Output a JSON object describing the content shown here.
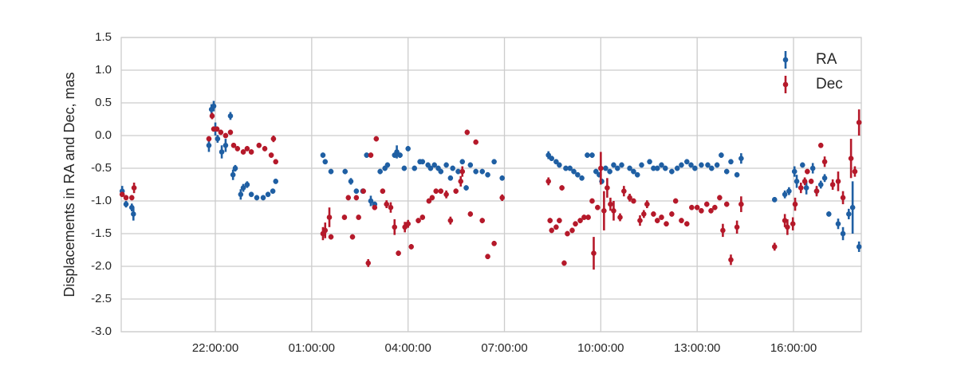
{
  "chart_data": {
    "type": "errorbar-scatter",
    "y_label": "Displacements in RA and Dec, mas",
    "xlim": [
      19.07,
      42.11
    ],
    "ylim": [
      -3.0,
      1.5
    ],
    "xticks": [
      {
        "value": 22,
        "label": "22:00:00"
      },
      {
        "value": 25,
        "label": "01:00:00"
      },
      {
        "value": 28,
        "label": "04:00:00"
      },
      {
        "value": 31,
        "label": "07:00:00"
      },
      {
        "value": 34,
        "label": "10:00:00"
      },
      {
        "value": 37,
        "label": "13:00:00"
      },
      {
        "value": 40,
        "label": "16:00:00"
      }
    ],
    "yticks": [
      1.5,
      {
        "value": 1,
        "label": "1.0"
      },
      0.5,
      {
        "value": 0,
        "label": "0.0"
      },
      -0.5,
      {
        "value": -1,
        "label": "-1.0"
      },
      -1.5,
      {
        "value": -2,
        "label": "-2.0"
      },
      -2.5,
      {
        "value": -3,
        "label": "-3.0"
      }
    ],
    "grid": true,
    "legend": "upper right",
    "series": [
      {
        "name": "RA",
        "color": "#1f5fa3",
        "x": [
          19.1,
          19.22,
          19.4,
          19.45,
          21.8,
          21.88,
          21.95,
          22.0,
          22.07,
          22.2,
          22.32,
          22.47,
          22.55,
          22.62,
          22.79,
          22.87,
          22.99,
          23.12,
          23.29,
          23.49,
          23.64,
          23.79,
          23.88,
          25.35,
          25.42,
          25.6,
          26.04,
          26.22,
          26.39,
          26.59,
          26.71,
          26.84,
          26.96,
          27.13,
          27.28,
          27.36,
          27.58,
          27.65,
          27.75,
          27.88,
          28.0,
          28.2,
          28.37,
          28.45,
          28.62,
          28.7,
          28.82,
          28.94,
          29.02,
          29.19,
          29.32,
          29.39,
          29.56,
          29.69,
          29.81,
          29.94,
          30.11,
          30.31,
          30.48,
          30.68,
          30.93,
          32.37,
          32.47,
          32.61,
          32.71,
          32.91,
          33.04,
          33.16,
          33.28,
          33.41,
          33.58,
          33.73,
          33.85,
          33.95,
          34.03,
          34.15,
          34.28,
          34.4,
          34.52,
          34.65,
          34.9,
          35.02,
          35.14,
          35.27,
          35.52,
          35.64,
          35.76,
          35.89,
          36.01,
          36.21,
          36.38,
          36.51,
          36.68,
          36.81,
          36.93,
          37.13,
          37.33,
          37.45,
          37.62,
          37.75,
          37.92,
          38.05,
          38.24,
          38.37,
          39.41,
          39.73,
          39.86,
          40.03,
          40.1,
          40.28,
          40.4,
          40.6,
          40.72,
          40.85,
          40.97,
          41.1,
          41.39,
          41.54,
          41.72,
          41.84,
          42.04
        ],
        "values": [
          -0.85,
          -1.05,
          -1.1,
          -1.2,
          -0.15,
          0.4,
          0.45,
          0.1,
          -0.05,
          -0.25,
          -0.15,
          0.3,
          -0.6,
          -0.5,
          -0.9,
          -0.8,
          -0.75,
          -0.9,
          -0.95,
          -0.95,
          -0.9,
          -0.85,
          -0.7,
          -0.3,
          -0.4,
          -0.55,
          -0.55,
          -0.7,
          -0.85,
          -0.85,
          -0.3,
          -1.0,
          -1.05,
          -0.55,
          -0.5,
          -0.45,
          -0.3,
          -0.25,
          -0.3,
          -0.5,
          -0.2,
          -0.5,
          -0.4,
          -0.4,
          -0.45,
          -0.5,
          -0.45,
          -0.5,
          -0.55,
          -0.45,
          -0.65,
          -0.5,
          -0.55,
          -0.4,
          -0.8,
          -0.45,
          -0.55,
          -0.55,
          -0.6,
          -0.4,
          -0.65,
          -0.3,
          -0.35,
          -0.4,
          -0.45,
          -0.5,
          -0.5,
          -0.55,
          -0.6,
          -0.65,
          -0.3,
          -0.3,
          -0.55,
          -0.6,
          -0.7,
          -0.5,
          -0.55,
          -0.45,
          -0.5,
          -0.45,
          -0.5,
          -0.55,
          -0.6,
          -0.45,
          -0.4,
          -0.5,
          -0.5,
          -0.45,
          -0.5,
          -0.55,
          -0.5,
          -0.45,
          -0.4,
          -0.45,
          -0.5,
          -0.45,
          -0.45,
          -0.5,
          -0.45,
          -0.3,
          -0.55,
          -0.4,
          -0.6,
          -0.35,
          -0.98,
          -0.9,
          -0.85,
          -0.55,
          -0.7,
          -0.45,
          -0.8,
          -0.5,
          -0.85,
          -0.75,
          -0.65,
          -1.2,
          -1.35,
          -1.5,
          -1.2,
          -1.1,
          -1.7
        ],
        "errors": [
          0.08,
          0.05,
          0.06,
          0.1,
          0.1,
          0.08,
          0.08,
          0.1,
          0.06,
          0.1,
          0.1,
          0.06,
          0.08,
          0.05,
          0.08,
          0.06,
          0.05,
          0.04,
          0.04,
          0.04,
          0.04,
          0.04,
          0.04,
          0.04,
          0.04,
          0.04,
          0.04,
          0.05,
          0.04,
          0.04,
          0.04,
          0.08,
          0.04,
          0.04,
          0.04,
          0.04,
          0.04,
          0.1,
          0.04,
          0.04,
          0.04,
          0.04,
          0.04,
          0.04,
          0.04,
          0.04,
          0.04,
          0.04,
          0.04,
          0.04,
          0.04,
          0.04,
          0.04,
          0.04,
          0.04,
          0.04,
          0.04,
          0.04,
          0.04,
          0.04,
          0.04,
          0.06,
          0.04,
          0.04,
          0.04,
          0.04,
          0.04,
          0.04,
          0.04,
          0.04,
          0.04,
          0.04,
          0.04,
          0.04,
          0.04,
          0.04,
          0.04,
          0.04,
          0.04,
          0.04,
          0.04,
          0.04,
          0.04,
          0.04,
          0.04,
          0.04,
          0.04,
          0.04,
          0.04,
          0.04,
          0.04,
          0.04,
          0.04,
          0.04,
          0.04,
          0.04,
          0.04,
          0.04,
          0.04,
          0.04,
          0.04,
          0.04,
          0.04,
          0.08,
          0.04,
          0.06,
          0.06,
          0.08,
          0.1,
          0.04,
          0.1,
          0.08,
          0.06,
          0.06,
          0.06,
          0.04,
          0.08,
          0.1,
          0.08,
          0.4,
          0.08
        ]
      },
      {
        "name": "Dec",
        "color": "#b5192a",
        "x": [
          19.1,
          19.22,
          19.4,
          19.47,
          21.8,
          21.9,
          21.95,
          22.05,
          22.17,
          22.32,
          22.47,
          22.57,
          22.69,
          22.87,
          22.99,
          23.12,
          23.36,
          23.54,
          23.74,
          23.81,
          23.88,
          25.35,
          25.42,
          25.55,
          25.6,
          26.02,
          26.14,
          26.27,
          26.39,
          26.46,
          26.61,
          26.76,
          26.84,
          26.96,
          27.01,
          27.21,
          27.33,
          27.46,
          27.58,
          27.7,
          27.9,
          28.0,
          28.1,
          28.32,
          28.45,
          28.65,
          28.75,
          28.87,
          29.02,
          29.19,
          29.32,
          29.49,
          29.64,
          29.69,
          29.84,
          29.94,
          30.11,
          30.31,
          30.48,
          30.68,
          30.93,
          32.37,
          32.42,
          32.47,
          32.61,
          32.71,
          32.79,
          32.86,
          32.96,
          33.11,
          33.21,
          33.36,
          33.48,
          33.61,
          33.73,
          33.78,
          33.9,
          34.0,
          34.1,
          34.2,
          34.3,
          34.4,
          34.6,
          34.72,
          34.9,
          35.02,
          35.22,
          35.34,
          35.44,
          35.64,
          35.76,
          35.89,
          36.04,
          36.21,
          36.33,
          36.51,
          36.68,
          36.83,
          37.0,
          37.13,
          37.3,
          37.43,
          37.55,
          37.7,
          37.8,
          37.92,
          38.05,
          38.24,
          38.37,
          39.41,
          39.73,
          39.81,
          39.98,
          40.05,
          40.23,
          40.35,
          40.43,
          40.55,
          40.72,
          40.85,
          40.97,
          41.22,
          41.39,
          41.54,
          41.79,
          41.91,
          42.04
        ],
        "values": [
          -0.9,
          -0.95,
          -0.95,
          -0.8,
          -0.05,
          0.3,
          0.1,
          0.1,
          0.05,
          0.0,
          0.05,
          -0.15,
          -0.2,
          -0.25,
          -0.2,
          -0.25,
          -0.15,
          -0.2,
          -0.3,
          -0.05,
          -0.4,
          -1.5,
          -1.45,
          -1.25,
          -1.55,
          -1.25,
          -0.95,
          -1.55,
          -0.95,
          -1.25,
          -0.85,
          -1.95,
          -0.3,
          -1.1,
          -0.05,
          -0.85,
          -1.05,
          -1.1,
          -1.4,
          -1.8,
          -1.4,
          -1.35,
          -1.7,
          -1.3,
          -1.25,
          -1.0,
          -0.95,
          -0.85,
          -0.85,
          -0.9,
          -1.3,
          -0.85,
          -0.7,
          -0.55,
          0.05,
          -1.2,
          -0.1,
          -1.3,
          -1.85,
          -1.65,
          -0.95,
          -0.7,
          -1.3,
          -1.45,
          -1.4,
          -1.3,
          -0.8,
          -1.95,
          -1.5,
          -1.45,
          -1.35,
          -1.3,
          -1.25,
          -1.25,
          -1.0,
          -1.8,
          -1.1,
          -0.5,
          -1.15,
          -0.8,
          -1.05,
          -1.15,
          -1.25,
          -0.85,
          -0.95,
          -1.0,
          -1.3,
          -1.2,
          -1.05,
          -1.2,
          -1.3,
          -1.25,
          -1.35,
          -1.2,
          -1.0,
          -1.3,
          -1.35,
          -1.1,
          -1.1,
          -1.15,
          -1.05,
          -1.15,
          -1.1,
          -0.95,
          -1.45,
          -1.05,
          -1.9,
          -1.4,
          -1.05,
          -1.7,
          -1.3,
          -1.4,
          -1.35,
          -1.05,
          -0.8,
          -0.7,
          -0.55,
          -0.7,
          -0.85,
          -0.15,
          -0.4,
          -0.75,
          -0.7,
          -0.95,
          -0.35,
          -0.55,
          0.2
        ],
        "errors": [
          0.04,
          0.04,
          0.04,
          0.08,
          0.04,
          0.05,
          0.04,
          0.04,
          0.04,
          0.04,
          0.04,
          0.04,
          0.04,
          0.04,
          0.04,
          0.04,
          0.04,
          0.04,
          0.04,
          0.05,
          0.04,
          0.1,
          0.12,
          0.15,
          0.04,
          0.04,
          0.04,
          0.04,
          0.04,
          0.04,
          0.04,
          0.06,
          0.04,
          0.04,
          0.04,
          0.04,
          0.06,
          0.08,
          0.12,
          0.04,
          0.08,
          0.06,
          0.04,
          0.04,
          0.04,
          0.04,
          0.04,
          0.04,
          0.04,
          0.06,
          0.06,
          0.04,
          0.08,
          0.08,
          0.04,
          0.04,
          0.04,
          0.04,
          0.04,
          0.04,
          0.05,
          0.06,
          0.04,
          0.04,
          0.04,
          0.04,
          0.04,
          0.04,
          0.04,
          0.04,
          0.04,
          0.04,
          0.04,
          0.04,
          0.04,
          0.25,
          0.04,
          0.25,
          0.3,
          0.15,
          0.1,
          0.15,
          0.06,
          0.08,
          0.06,
          0.04,
          0.08,
          0.06,
          0.06,
          0.04,
          0.04,
          0.04,
          0.04,
          0.04,
          0.04,
          0.04,
          0.04,
          0.04,
          0.04,
          0.04,
          0.04,
          0.04,
          0.04,
          0.04,
          0.1,
          0.04,
          0.08,
          0.1,
          0.12,
          0.06,
          0.1,
          0.12,
          0.1,
          0.1,
          0.08,
          0.06,
          0.04,
          0.04,
          0.08,
          0.04,
          0.08,
          0.08,
          0.15,
          0.1,
          0.3,
          0.08,
          0.2
        ]
      }
    ]
  }
}
